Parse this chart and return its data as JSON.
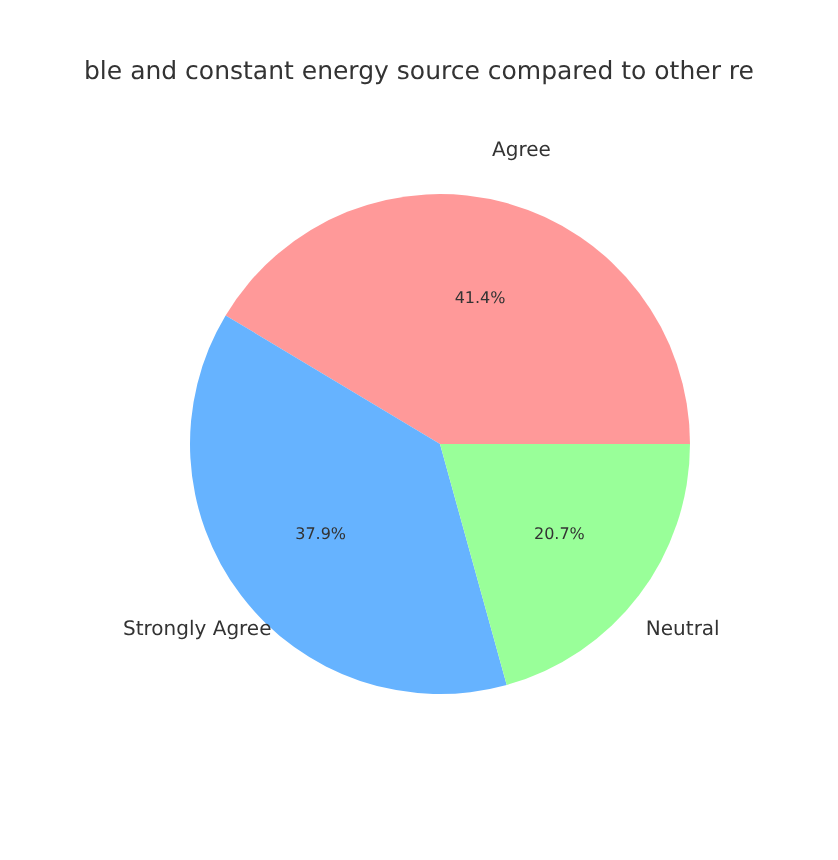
{
  "chart_data": {
    "type": "pie",
    "title": "ble and constant energy source compared to other re",
    "categories": [
      "Agree",
      "Strongly Agree",
      "Neutral"
    ],
    "values": [
      41.4,
      37.9,
      20.7
    ],
    "colors": [
      "#ff9999",
      "#66b3ff",
      "#99ff99"
    ],
    "value_labels": [
      "41.4%",
      "37.9%",
      "20.7%"
    ],
    "legend": false
  }
}
